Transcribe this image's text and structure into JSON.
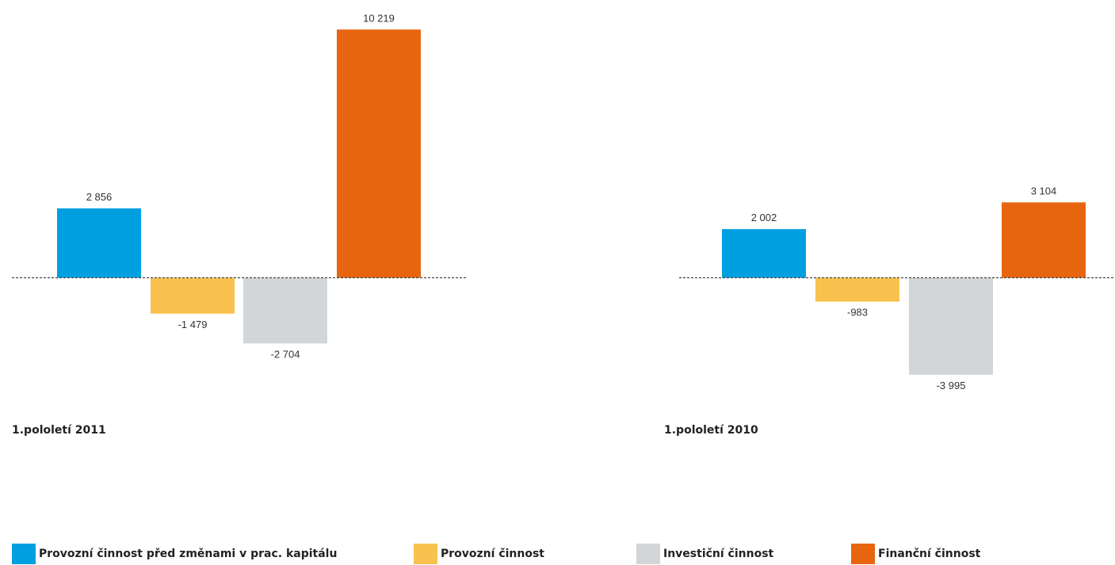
{
  "chart_data": [
    {
      "type": "bar",
      "title": "1.pololetí 2011",
      "categories": [
        "Provozní činnost před změnami v prac. kapitálu",
        "Provozní činnost",
        "Investiční činnost",
        "Finanční činnost"
      ],
      "values": [
        2856,
        -1479,
        -2704,
        10219
      ],
      "value_labels": [
        "2 856",
        "-1 479",
        "-2 704",
        "10 219"
      ],
      "colors": [
        "#009fe0",
        "#f9c24e",
        "#d2d6d8",
        "#e8650f"
      ]
    },
    {
      "type": "bar",
      "title": "1.pololetí 2010",
      "categories": [
        "Provozní činnost před změnami v prac. kapitálu",
        "Provozní činnost",
        "Investiční činnost",
        "Finanční činnost"
      ],
      "values": [
        2002,
        -983,
        -3995,
        3104
      ],
      "value_labels": [
        "2 002",
        "-983",
        "-3 995",
        "3 104"
      ],
      "colors": [
        "#009fe0",
        "#f9c24e",
        "#d2d6d8",
        "#e8650f"
      ]
    }
  ],
  "legend": [
    {
      "label": "Provozní činnost před změnami v prac. kapitálu",
      "color": "#009fe0"
    },
    {
      "label": "Provozní činnost",
      "color": "#f9c24e"
    },
    {
      "label": "Investiční činnost",
      "color": "#d2d6d8"
    },
    {
      "label": "Finanční činnost",
      "color": "#e8650f"
    }
  ]
}
